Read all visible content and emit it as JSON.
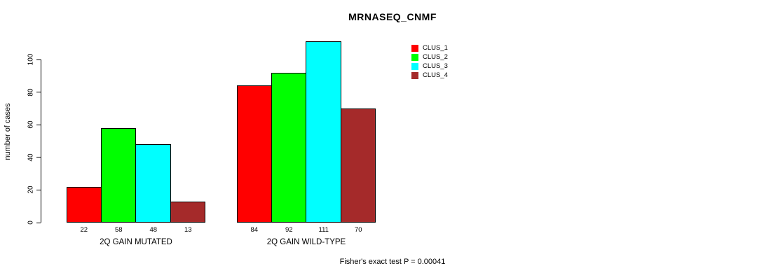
{
  "chart_data": {
    "type": "bar",
    "title": "MRNASEQ_CNMF",
    "ylabel": "number of cases",
    "xlabel": "",
    "ylim": [
      0,
      100
    ],
    "yticks": [
      0,
      20,
      40,
      60,
      80,
      100
    ],
    "grid": false,
    "legend_position": "top-right",
    "categories": [
      "2Q GAIN MUTATED",
      "2Q GAIN WILD-TYPE"
    ],
    "series": [
      {
        "name": "CLUS_1",
        "color": "#FF0000",
        "values": [
          22,
          84
        ]
      },
      {
        "name": "CLUS_2",
        "color": "#00FF00",
        "values": [
          58,
          92
        ]
      },
      {
        "name": "CLUS_3",
        "color": "#00FFFF",
        "values": [
          48,
          111
        ]
      },
      {
        "name": "CLUS_4",
        "color": "#A52A2A",
        "values": [
          13,
          70
        ]
      }
    ],
    "bar_value_labels": [
      [
        22,
        58,
        48,
        13
      ],
      [
        84,
        92,
        111,
        70
      ]
    ],
    "annotation": "Fisher's exact test P = 0.00041"
  },
  "colors": {
    "axis": "#000000",
    "text": "#000000",
    "background": "#FFFFFF"
  }
}
